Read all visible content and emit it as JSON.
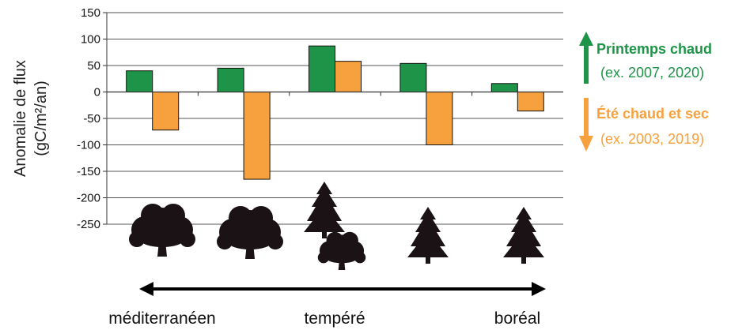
{
  "chart_data": {
    "type": "bar",
    "title": "",
    "ylabel_line1": "Anomalie de flux",
    "ylabel_line2": "(gC/m²/an)",
    "xlabel": "",
    "ylim": [
      -250,
      150
    ],
    "yticks": [
      150,
      100,
      50,
      0,
      -50,
      -100,
      -150,
      -200,
      -250
    ],
    "grid": true,
    "categories": [
      "",
      "",
      "",
      "",
      ""
    ],
    "series": [
      {
        "name": "Printemps chaud",
        "color": "#1e9448",
        "values": [
          40,
          45,
          87,
          54,
          16
        ]
      },
      {
        "name": "Été chaud et sec",
        "color": "#f7a13e",
        "values": [
          -72,
          -165,
          58,
          -100,
          -36
        ]
      }
    ],
    "legend": {
      "placement": "right",
      "items": [
        {
          "title": "Printemps chaud",
          "subtitle": "(ex. 2007, 2020)",
          "color": "#1e9448",
          "arrow": "up"
        },
        {
          "title": "Été chaud et sec",
          "subtitle": "(ex. 2003, 2019)",
          "color": "#f7a13e",
          "arrow": "down"
        }
      ]
    },
    "tree_icons": [
      "broadleaf-tree",
      "broadleaf-tree",
      "conifer-and-broadleaf-tree",
      "conifer-tree",
      "conifer-tree"
    ],
    "biome_axis": {
      "labels": [
        "méditerranéen",
        "tempéré",
        "boréal"
      ],
      "arrow": "double-headed"
    }
  }
}
